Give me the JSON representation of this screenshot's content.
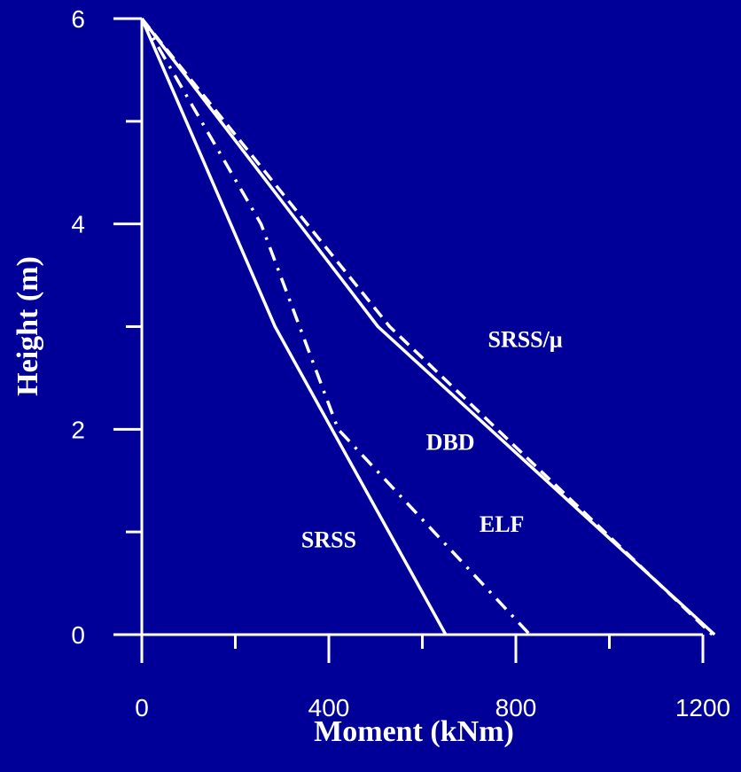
{
  "chart_data": {
    "type": "line",
    "xlabel": "Moment (kNm)",
    "ylabel": "Height (m)",
    "xlim": [
      0,
      1200
    ],
    "ylim": [
      0,
      6
    ],
    "x_ticks_labeled": [
      0,
      400,
      800,
      1200
    ],
    "x_ticks_minor": [
      200,
      600,
      1000
    ],
    "y_ticks_labeled": [
      0,
      2,
      4,
      6
    ],
    "y_ticks_minor": [
      1,
      3,
      5
    ],
    "grid": false,
    "background_color": "#000099",
    "line_color": "#ffffff",
    "series": [
      {
        "name": "SRSS",
        "style": "solid",
        "points": [
          [
            0,
            6
          ],
          [
            285,
            3
          ],
          [
            650,
            0
          ]
        ]
      },
      {
        "name": "ELF",
        "style": "dashdot",
        "points": [
          [
            0,
            6
          ],
          [
            255,
            4
          ],
          [
            420,
            2
          ],
          [
            830,
            0
          ]
        ]
      },
      {
        "name": "DBD",
        "style": "solid",
        "points": [
          [
            0,
            6
          ],
          [
            505,
            3
          ],
          [
            1225,
            0
          ]
        ]
      },
      {
        "name": "SRSS/μ",
        "style": "dashed",
        "points": [
          [
            0,
            6
          ],
          [
            530,
            3
          ],
          [
            1220,
            0
          ]
        ]
      }
    ],
    "annotations": [
      {
        "text": "SRSS",
        "x": 400,
        "y": 0.85
      },
      {
        "text": "ELF",
        "x": 770,
        "y": 1.0
      },
      {
        "text": "DBD",
        "x": 660,
        "y": 1.8
      },
      {
        "text": "SRSS/μ",
        "x": 820,
        "y": 2.8
      }
    ]
  }
}
